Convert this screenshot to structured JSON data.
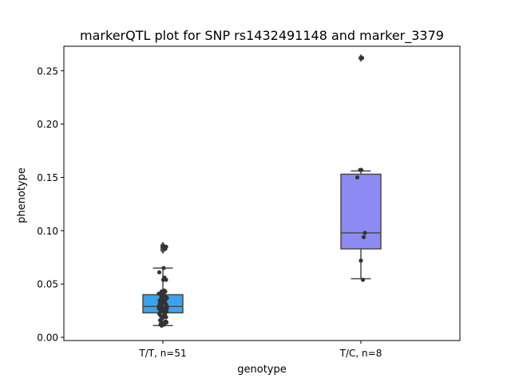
{
  "chart_data": {
    "type": "box",
    "title": "markerQTL plot for SNP rs1432491148 and marker_3379",
    "xlabel": "genotype",
    "ylabel": "phenotype",
    "ylim": [
      -0.003,
      0.273
    ],
    "yticks": [
      {
        "value": 0.0,
        "label": "0.00"
      },
      {
        "value": 0.05,
        "label": "0.05"
      },
      {
        "value": 0.1,
        "label": "0.10"
      },
      {
        "value": 0.15,
        "label": "0.15"
      },
      {
        "value": 0.2,
        "label": "0.20"
      },
      {
        "value": 0.25,
        "label": "0.25"
      }
    ],
    "categories": [
      "T/T, n=51",
      "T/C, n=8"
    ],
    "grid": false,
    "groups": [
      {
        "label": "T/T, n=51",
        "color": "#3ba3ec",
        "box": {
          "q1": 0.023,
          "median": 0.029,
          "q3": 0.04,
          "whisker_low": 0.011,
          "whisker_high": 0.065
        },
        "outliers": [
          0.082,
          0.084,
          0.086
        ],
        "points": [
          {
            "jitter": -0.09,
            "y": 0.061
          },
          {
            "jitter": -0.1,
            "y": 0.041
          },
          {
            "jitter": -0.07,
            "y": 0.035
          },
          {
            "jitter": -0.08,
            "y": 0.031
          },
          {
            "jitter": -0.1,
            "y": 0.027
          },
          {
            "jitter": -0.06,
            "y": 0.024
          },
          {
            "jitter": -0.09,
            "y": 0.022
          },
          {
            "jitter": -0.05,
            "y": 0.02
          },
          {
            "jitter": -0.07,
            "y": 0.016
          },
          {
            "jitter": -0.04,
            "y": 0.038
          },
          {
            "jitter": -0.03,
            "y": 0.043
          },
          {
            "jitter": -0.02,
            "y": 0.033
          },
          {
            "jitter": -0.05,
            "y": 0.03
          },
          {
            "jitter": -0.02,
            "y": 0.026
          },
          {
            "jitter": -0.04,
            "y": 0.014
          },
          {
            "jitter": -0.03,
            "y": 0.011
          },
          {
            "jitter": -0.01,
            "y": 0.018
          },
          {
            "jitter": 0.0,
            "y": 0.036
          },
          {
            "jitter": 0.01,
            "y": 0.054
          },
          {
            "jitter": 0.02,
            "y": 0.065
          },
          {
            "jitter": 0.03,
            "y": 0.032
          },
          {
            "jitter": 0.0,
            "y": 0.013
          },
          {
            "jitter": 0.01,
            "y": 0.024
          },
          {
            "jitter": 0.04,
            "y": 0.056
          },
          {
            "jitter": 0.05,
            "y": 0.033
          },
          {
            "jitter": 0.05,
            "y": 0.022
          },
          {
            "jitter": 0.06,
            "y": 0.043
          },
          {
            "jitter": 0.06,
            "y": 0.027
          },
          {
            "jitter": 0.07,
            "y": 0.015
          },
          {
            "jitter": 0.07,
            "y": 0.038
          },
          {
            "jitter": 0.08,
            "y": 0.054
          },
          {
            "jitter": 0.08,
            "y": 0.031
          },
          {
            "jitter": 0.09,
            "y": 0.024
          },
          {
            "jitter": 0.09,
            "y": 0.014
          },
          {
            "jitter": 0.1,
            "y": 0.029
          },
          {
            "jitter": 0.1,
            "y": 0.037
          },
          {
            "jitter": -0.06,
            "y": 0.012
          },
          {
            "jitter": 0.03,
            "y": 0.012
          },
          {
            "jitter": 0.04,
            "y": 0.021
          },
          {
            "jitter": -0.01,
            "y": 0.028
          },
          {
            "jitter": 0.02,
            "y": 0.04
          },
          {
            "jitter": -0.08,
            "y": 0.034
          },
          {
            "jitter": 0.06,
            "y": 0.035
          },
          {
            "jitter": -0.05,
            "y": 0.041
          },
          {
            "jitter": 0.08,
            "y": 0.019
          },
          {
            "jitter": 0.01,
            "y": 0.085
          },
          {
            "jitter": 0.06,
            "y": 0.083
          },
          {
            "jitter": 0.08,
            "y": 0.085
          },
          {
            "jitter": 0.1,
            "y": 0.027
          },
          {
            "jitter": -0.1,
            "y": 0.029
          },
          {
            "jitter": 0.03,
            "y": 0.044
          }
        ]
      },
      {
        "label": "T/C, n=8",
        "color": "#8b8bf3",
        "box": {
          "q1": 0.083,
          "median": 0.098,
          "q3": 0.153,
          "whisker_low": 0.055,
          "whisker_high": 0.156
        },
        "outliers": [
          0.262
        ],
        "points": [
          {
            "jitter": -0.09,
            "y": 0.15
          },
          {
            "jitter": -0.02,
            "y": 0.157
          },
          {
            "jitter": 0.0,
            "y": 0.072
          },
          {
            "jitter": 0.05,
            "y": 0.054
          },
          {
            "jitter": 0.07,
            "y": 0.094
          },
          {
            "jitter": 0.1,
            "y": 0.098
          },
          {
            "jitter": 0.03,
            "y": 0.262
          },
          {
            "jitter": 0.01,
            "y": 0.157
          }
        ]
      }
    ]
  }
}
